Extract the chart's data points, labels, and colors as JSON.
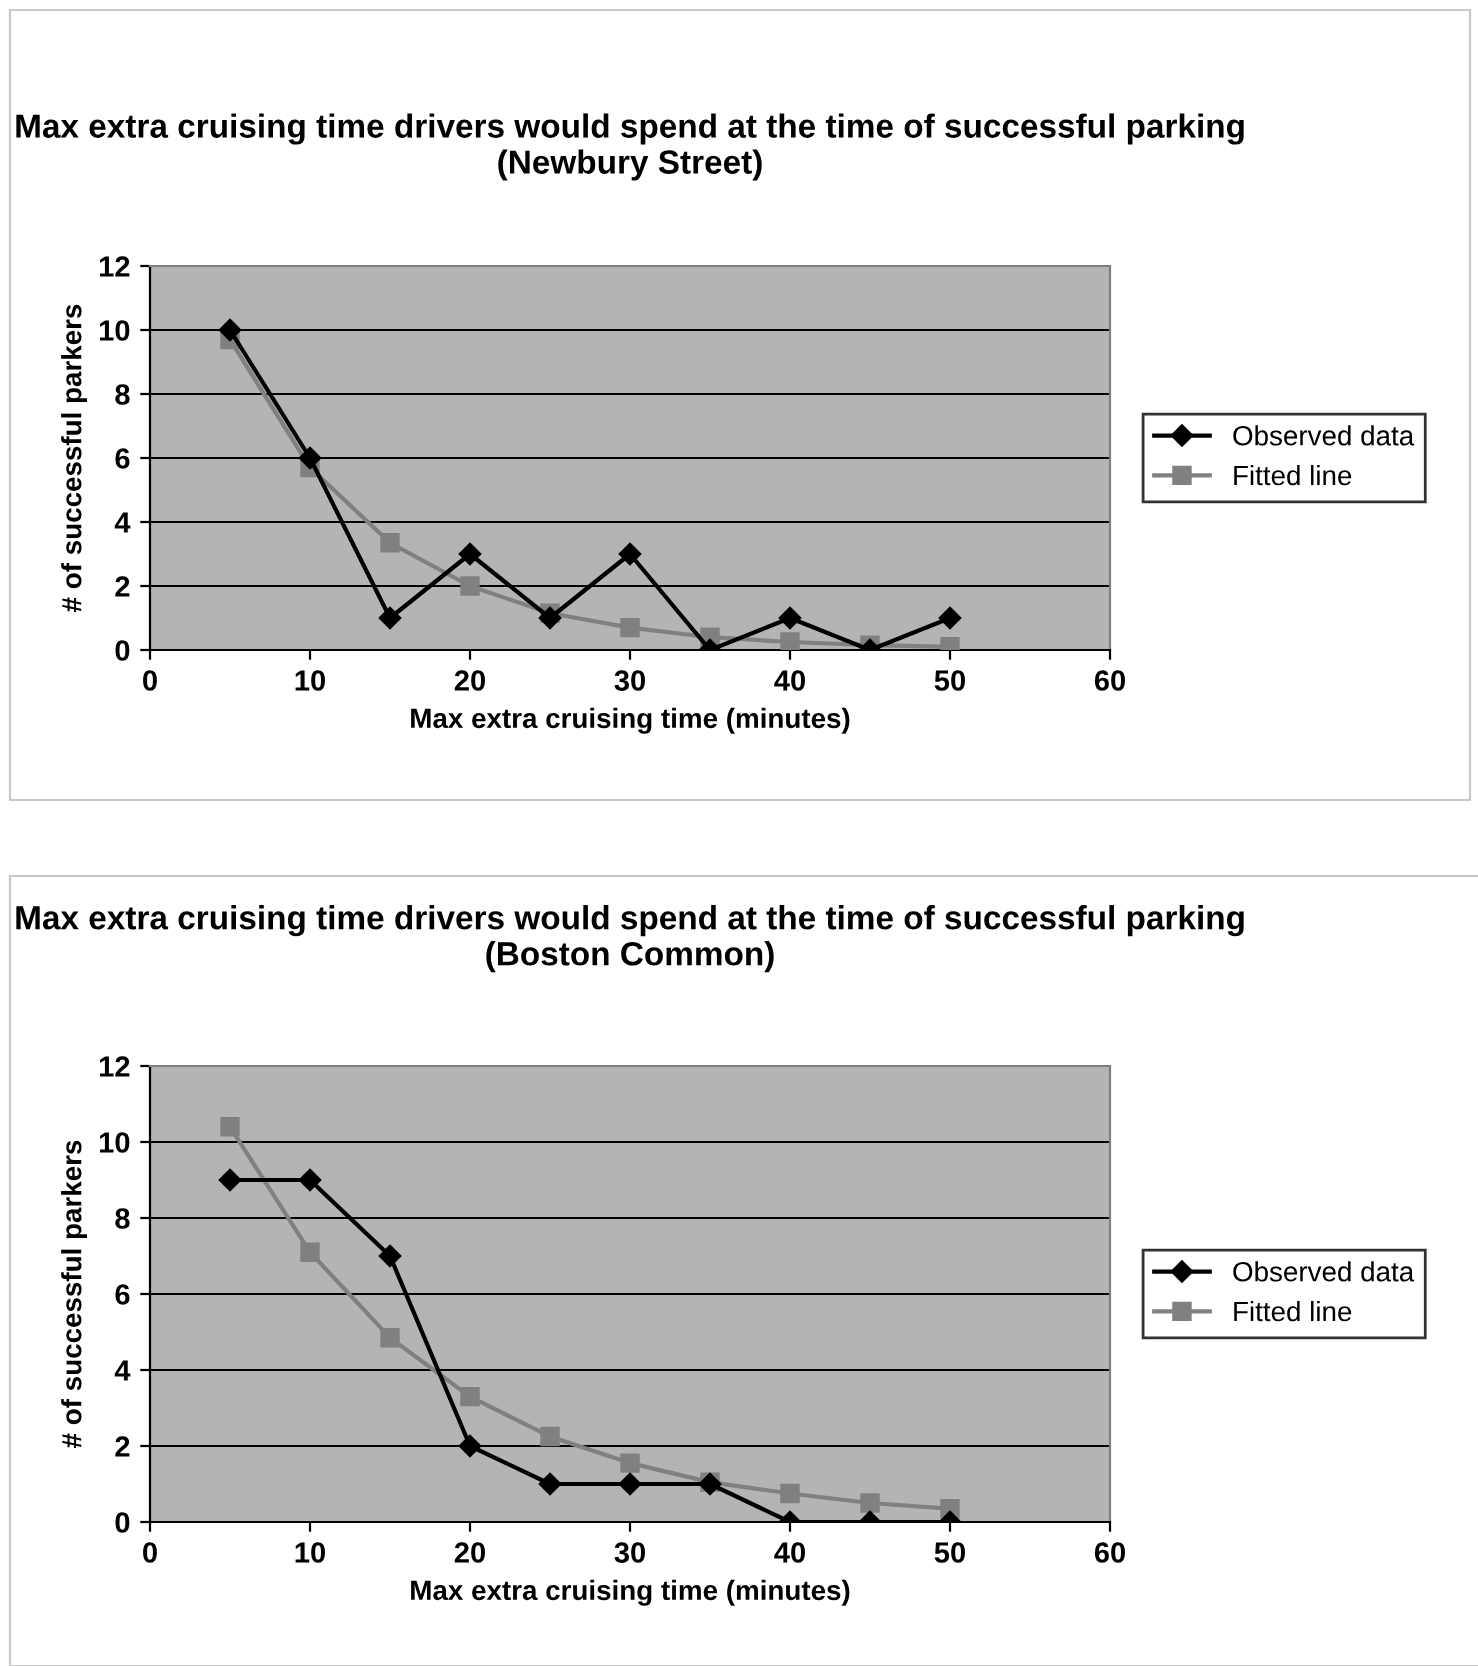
{
  "chart_data": [
    {
      "type": "line",
      "title": "Max extra cruising time drivers would spend at the time of successful parking (Newbury Street)",
      "xlabel": "Max extra cruising time (minutes)",
      "ylabel": "# of successful parkers",
      "x": [
        5,
        10,
        15,
        20,
        25,
        30,
        35,
        40,
        45,
        50
      ],
      "xlim": [
        0,
        60
      ],
      "xticks": [
        0,
        10,
        20,
        30,
        40,
        50,
        60
      ],
      "ylim": [
        0,
        12
      ],
      "yticks": [
        0,
        2,
        4,
        6,
        8,
        10,
        12
      ],
      "grid": "y",
      "legend": "right",
      "series": [
        {
          "name": "Observed data",
          "color": "#000000",
          "marker": "diamond",
          "values": [
            10,
            6,
            1,
            3,
            1,
            3,
            0,
            1,
            0,
            1
          ]
        },
        {
          "name": "Fitted line",
          "color": "#808080",
          "marker": "square",
          "values": [
            9.7,
            5.7,
            3.35,
            2.0,
            1.15,
            0.7,
            0.4,
            0.25,
            0.15,
            0.1
          ]
        }
      ]
    },
    {
      "type": "line",
      "title": "Max extra cruising time drivers would spend at the time of successful parking (Boston Common)",
      "xlabel": "Max extra cruising time (minutes)",
      "ylabel": "# of successful parkers",
      "x": [
        5,
        10,
        15,
        20,
        25,
        30,
        35,
        40,
        45,
        50
      ],
      "xlim": [
        0,
        60
      ],
      "xticks": [
        0,
        10,
        20,
        30,
        40,
        50,
        60
      ],
      "ylim": [
        0,
        12
      ],
      "yticks": [
        0,
        2,
        4,
        6,
        8,
        10,
        12
      ],
      "grid": "y",
      "legend": "right",
      "series": [
        {
          "name": "Observed data",
          "color": "#000000",
          "marker": "diamond",
          "values": [
            9,
            9,
            7,
            2,
            1,
            1,
            1,
            0,
            0,
            0
          ]
        },
        {
          "name": "Fitted line",
          "color": "#808080",
          "marker": "square",
          "values": [
            10.4,
            7.1,
            4.85,
            3.3,
            2.25,
            1.55,
            1.05,
            0.75,
            0.5,
            0.35
          ]
        }
      ]
    }
  ]
}
